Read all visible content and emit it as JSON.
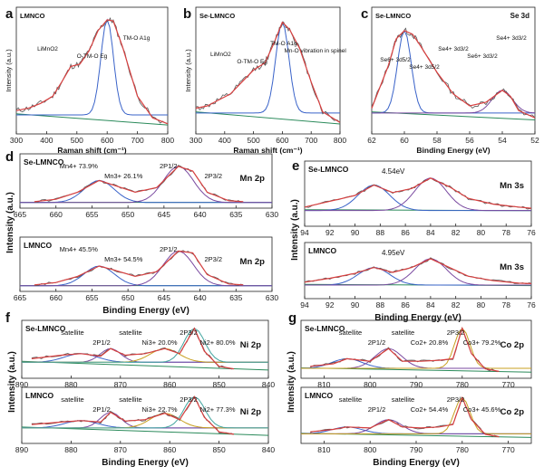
{
  "figure_colors": {
    "data": "#555555",
    "fit": "#c85a2a",
    "envelope": "#d84040",
    "baseline": "#2a8a5a",
    "accent1": "#3a63c9",
    "accent2": "#7a4aa0",
    "accent3": "#c8a020",
    "accent4": "#43a6a0"
  },
  "chart_data": [
    {
      "panel": "a",
      "type": "line",
      "sample": "LMNCO",
      "xlabel": "Raman shift (cm⁻¹)",
      "ylabel": "Intensity (a.u.)",
      "xlim": [
        300,
        800
      ],
      "xticks": [
        300,
        400,
        500,
        600,
        700,
        800
      ],
      "series": [
        {
          "values": [
            [
              300,
              0.18
            ],
            [
              340,
              0.2
            ],
            [
              380,
              0.24
            ],
            [
              420,
              0.3
            ],
            [
              450,
              0.42
            ],
            [
              480,
              0.55
            ],
            [
              510,
              0.57
            ],
            [
              540,
              0.68
            ],
            [
              570,
              0.85
            ],
            [
              600,
              0.94
            ],
            [
              620,
              0.93
            ],
            [
              650,
              0.72
            ],
            [
              700,
              0.3
            ],
            [
              750,
              0.12
            ],
            [
              800,
              0.07
            ]
          ]
        }
      ],
      "annotations": [
        "LiMnO2",
        "O-TM-O Eg",
        "TM-O A1g"
      ]
    },
    {
      "panel": "b",
      "type": "line",
      "sample": "Se-LMNCO",
      "xlabel": "Raman shift (cm⁻¹)",
      "ylabel": "Intensity (a.u.)",
      "xlim": [
        300,
        800
      ],
      "xticks": [
        300,
        400,
        500,
        600,
        700,
        800
      ],
      "series": [
        {
          "values": [
            [
              300,
              0.2
            ],
            [
              340,
              0.22
            ],
            [
              380,
              0.27
            ],
            [
              420,
              0.32
            ],
            [
              460,
              0.42
            ],
            [
              500,
              0.52
            ],
            [
              540,
              0.58
            ],
            [
              570,
              0.74
            ],
            [
              600,
              0.92
            ],
            [
              625,
              0.86
            ],
            [
              660,
              0.7
            ],
            [
              700,
              0.42
            ],
            [
              740,
              0.17
            ],
            [
              800,
              0.08
            ]
          ]
        }
      ],
      "annotations": [
        "LiMnO2",
        "O-TM-O Eg",
        "TM-O A1g",
        "Mn-O vibration in spinel"
      ]
    },
    {
      "panel": "c",
      "type": "line",
      "sample": "Se-LMNCO",
      "title": "Se 3d",
      "xlabel": "Binding Energy (eV)",
      "ylabel": "",
      "xlim": [
        62,
        52
      ],
      "xticks": [
        62,
        60,
        58,
        56,
        54,
        52
      ],
      "series": [
        {
          "values": [
            [
              62,
              0.2
            ],
            [
              61,
              0.55
            ],
            [
              60.5,
              0.78
            ],
            [
              60,
              0.85
            ],
            [
              59.5,
              0.82
            ],
            [
              59,
              0.72
            ],
            [
              58,
              0.5
            ],
            [
              57,
              0.32
            ],
            [
              56,
              0.22
            ],
            [
              55,
              0.25
            ],
            [
              54,
              0.35
            ],
            [
              53.5,
              0.3
            ],
            [
              53,
              0.18
            ],
            [
              52,
              0.12
            ]
          ]
        }
      ],
      "annotations": [
        "Se6+ 3d5/2",
        "Se4+ 3d5/2",
        "Se4+ 3d3/2",
        "Se6+ 3d3/2",
        "Se4+ 3d3/2"
      ]
    },
    {
      "panel": "d",
      "type": "line",
      "title": "Mn 2p",
      "xlabel": "Binding Energy (eV)",
      "ylabel": "Intensity (a.u.)",
      "xlim": [
        665,
        630
      ],
      "xticks": [
        665,
        660,
        655,
        650,
        645,
        640,
        635,
        630
      ],
      "spectra": [
        {
          "sample": "Se-LMNCO",
          "peaks": [
            "2P1/2",
            "2P3/2"
          ],
          "labels": [
            "Mn4+ 73.9%",
            "Mn3+ 26.1%"
          ],
          "mn4_pct": 73.9,
          "mn3_pct": 26.1,
          "values": [
            [
              663,
              0.1
            ],
            [
              660,
              0.15
            ],
            [
              657,
              0.3
            ],
            [
              654,
              0.55
            ],
            [
              652,
              0.45
            ],
            [
              649,
              0.3
            ],
            [
              646,
              0.4
            ],
            [
              643,
              0.85
            ],
            [
              641,
              0.75
            ],
            [
              639,
              0.3
            ],
            [
              636,
              0.12
            ],
            [
              634,
              0.1
            ]
          ]
        },
        {
          "sample": "LMNCO",
          "peaks": [
            "2P1/2",
            "2P3/2"
          ],
          "labels": [
            "Mn4+ 45.5%",
            "Mn3+ 54.5%"
          ],
          "mn4_pct": 45.5,
          "mn3_pct": 54.5,
          "values": [
            [
              663,
              0.1
            ],
            [
              660,
              0.15
            ],
            [
              657,
              0.28
            ],
            [
              654,
              0.5
            ],
            [
              652,
              0.42
            ],
            [
              649,
              0.28
            ],
            [
              646,
              0.38
            ],
            [
              643,
              0.82
            ],
            [
              641,
              0.78
            ],
            [
              639,
              0.32
            ],
            [
              636,
              0.12
            ],
            [
              634,
              0.1
            ]
          ]
        }
      ]
    },
    {
      "panel": "e",
      "type": "line",
      "title": "Mn 3s",
      "xlabel": "Binding Energy (eV)",
      "ylabel": "Intensity (a.u.)",
      "xlim": [
        94,
        76
      ],
      "xticks": [
        94,
        92,
        90,
        88,
        86,
        84,
        82,
        80,
        78,
        76
      ],
      "spectra": [
        {
          "sample": "Se-LMNCO",
          "splitting": "4.54eV",
          "values": [
            [
              94,
              0.3
            ],
            [
              92,
              0.4
            ],
            [
              90,
              0.5
            ],
            [
              88.5,
              0.68
            ],
            [
              87,
              0.55
            ],
            [
              85.5,
              0.62
            ],
            [
              84,
              0.8
            ],
            [
              82.5,
              0.65
            ],
            [
              81,
              0.45
            ],
            [
              79,
              0.35
            ],
            [
              77,
              0.3
            ],
            [
              76,
              0.28
            ]
          ]
        },
        {
          "sample": "LMNCO",
          "splitting": "4.95eV",
          "values": [
            [
              94,
              0.3
            ],
            [
              92,
              0.38
            ],
            [
              90,
              0.48
            ],
            [
              88.5,
              0.6
            ],
            [
              87,
              0.5
            ],
            [
              85.5,
              0.6
            ],
            [
              84,
              0.78
            ],
            [
              82.5,
              0.6
            ],
            [
              81,
              0.42
            ],
            [
              79,
              0.33
            ],
            [
              77,
              0.28
            ],
            [
              76,
              0.27
            ]
          ]
        }
      ]
    },
    {
      "panel": "f",
      "type": "line",
      "title": "Ni 2p",
      "xlabel": "Binding Energy (eV)",
      "ylabel": "Intensity (a.u.)",
      "xlim": [
        890,
        840
      ],
      "xticks": [
        890,
        880,
        870,
        860,
        850,
        840
      ],
      "spectra": [
        {
          "sample": "Se-LMNCO",
          "labels": [
            "satellite",
            "2P1/2",
            "satellite",
            "Ni3+ 20.0%",
            "2P3/2",
            "Ni2+ 80.0%"
          ],
          "ni3_pct": 20.0,
          "ni2_pct": 80.0,
          "values": [
            [
              888,
              0.35
            ],
            [
              882,
              0.42
            ],
            [
              878,
              0.45
            ],
            [
              874,
              0.4
            ],
            [
              872,
              0.55
            ],
            [
              869,
              0.42
            ],
            [
              865,
              0.45
            ],
            [
              861,
              0.55
            ],
            [
              858,
              0.45
            ],
            [
              855,
              0.95
            ],
            [
              853,
              0.5
            ],
            [
              850,
              0.2
            ],
            [
              847,
              0.15
            ]
          ]
        },
        {
          "sample": "LMNCO",
          "labels": [
            "satellite",
            "2P1/2",
            "satellite",
            "Ni3+ 22.7%",
            "2P3/2",
            "Ni2+ 77.3%"
          ],
          "ni3_pct": 22.7,
          "ni2_pct": 77.3,
          "values": [
            [
              888,
              0.35
            ],
            [
              882,
              0.4
            ],
            [
              878,
              0.43
            ],
            [
              874,
              0.4
            ],
            [
              872,
              0.6
            ],
            [
              869,
              0.42
            ],
            [
              865,
              0.45
            ],
            [
              861,
              0.58
            ],
            [
              858,
              0.45
            ],
            [
              855,
              0.92
            ],
            [
              853,
              0.5
            ],
            [
              850,
              0.2
            ],
            [
              847,
              0.15
            ]
          ]
        }
      ]
    },
    {
      "panel": "g",
      "type": "line",
      "title": "Co 2p",
      "xlabel": "Binding Energy (eV)",
      "ylabel": "Intensity (a.u.)",
      "xlim": [
        815,
        765
      ],
      "xticks": [
        810,
        800,
        790,
        780,
        770
      ],
      "spectra": [
        {
          "sample": "Se-LMNCO",
          "labels": [
            "satellite",
            "2P1/2",
            "satellite",
            "Co2+ 20.8%",
            "2P3/2",
            "Co3+ 79.2%"
          ],
          "co2_pct": 20.8,
          "co3_pct": 79.2,
          "values": [
            [
              813,
              0.2
            ],
            [
              808,
              0.25
            ],
            [
              805,
              0.35
            ],
            [
              800,
              0.3
            ],
            [
              796,
              0.55
            ],
            [
              793,
              0.3
            ],
            [
              789,
              0.3
            ],
            [
              785,
              0.32
            ],
            [
              782,
              0.35
            ],
            [
              780,
              0.95
            ],
            [
              778,
              0.45
            ],
            [
              775,
              0.15
            ],
            [
              772,
              0.1
            ]
          ]
        },
        {
          "sample": "LMNCO",
          "labels": [
            "satellite",
            "2P1/2",
            "satellite",
            "Co2+ 54.4%",
            "2P3/2",
            "Co3+ 45.6%"
          ],
          "co2_pct": 54.4,
          "co3_pct": 45.6,
          "values": [
            [
              813,
              0.2
            ],
            [
              808,
              0.25
            ],
            [
              805,
              0.3
            ],
            [
              800,
              0.28
            ],
            [
              796,
              0.45
            ],
            [
              793,
              0.3
            ],
            [
              789,
              0.28
            ],
            [
              785,
              0.3
            ],
            [
              782,
              0.35
            ],
            [
              780,
              0.9
            ],
            [
              778,
              0.45
            ],
            [
              775,
              0.15
            ],
            [
              772,
              0.1
            ]
          ]
        }
      ]
    }
  ]
}
